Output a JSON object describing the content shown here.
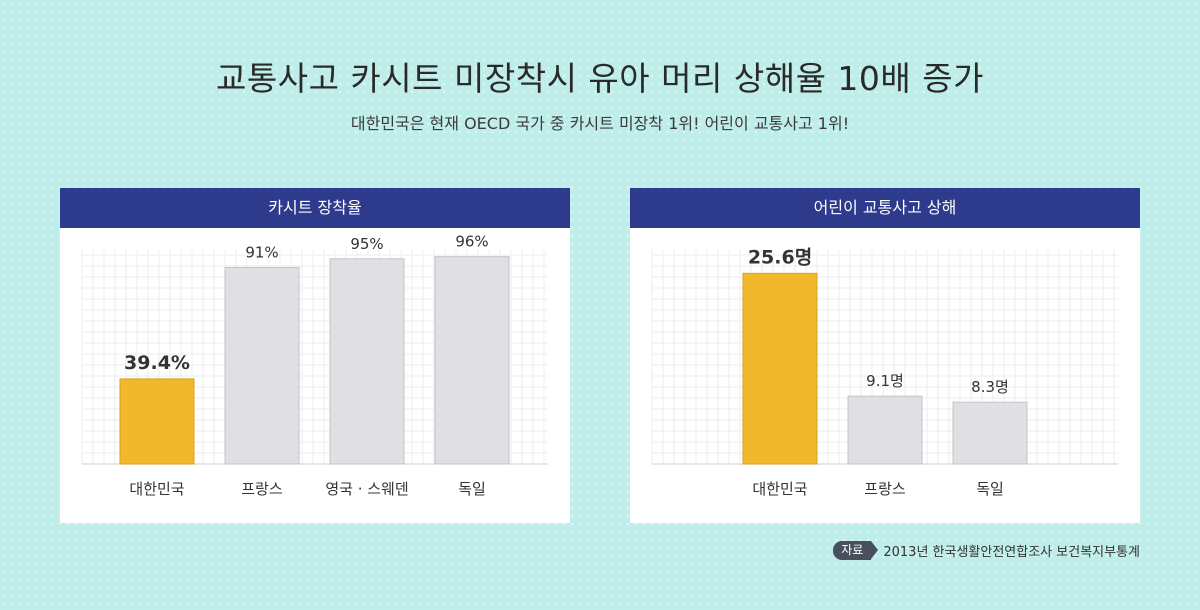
{
  "header": {
    "title": "교통사고 카시트 미장착시 유아 머리 상해율 10배 증가",
    "subtitle": "대한민국은 현재 OECD 국가 중 카시트 미장착 1위! 어린이 교통사고 1위!"
  },
  "source": {
    "badge": "자료",
    "text": "2013년 한국생활안전연합조사 보건복지부통계"
  },
  "colors": {
    "header_bg": "#2e3a8c",
    "highlight_bar": "#f0b82a",
    "normal_bar": "#e0e0e4"
  },
  "chart_data": [
    {
      "type": "bar",
      "title": "카시트 장착율",
      "categories": [
        "대한민국",
        "프랑스",
        "영국 · 스웨덴",
        "독일"
      ],
      "values": [
        39.4,
        91,
        95,
        96
      ],
      "labels": [
        "39.4%",
        "91%",
        "95%",
        "96%"
      ],
      "highlight_index": 0,
      "ylim": [
        0,
        100
      ]
    },
    {
      "type": "bar",
      "title": "어린이 교통사고 상해",
      "categories": [
        "대한민국",
        "프랑스",
        "독일"
      ],
      "values": [
        25.6,
        9.1,
        8.3
      ],
      "labels": [
        "25.6명",
        "9.1명",
        "8.3명"
      ],
      "highlight_index": 0,
      "ylim": [
        0,
        29
      ]
    }
  ]
}
